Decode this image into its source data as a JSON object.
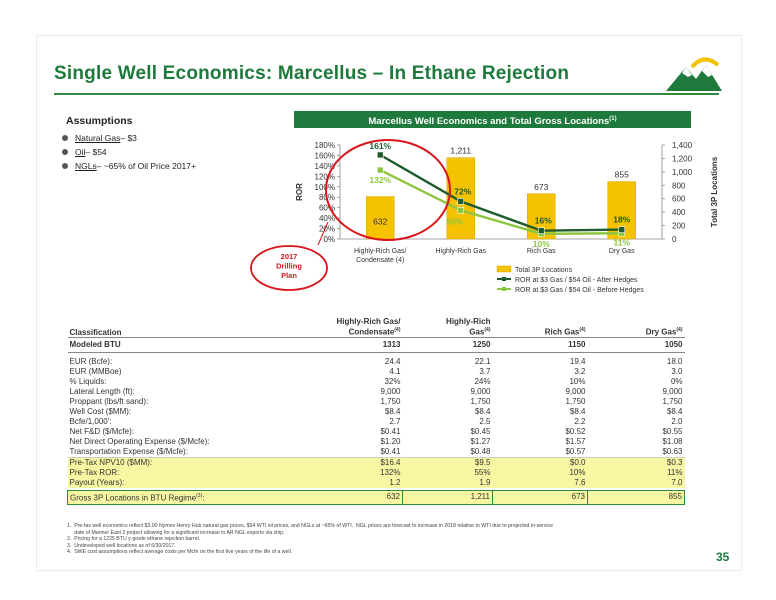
{
  "slide": {
    "title": "Single Well Economics: Marcellus – In Ethane Rejection",
    "page_number": "35",
    "accent_color": "#1e7a3c"
  },
  "assumptions": {
    "heading": "Assumptions",
    "items": [
      {
        "label": "Natural Gas",
        "value": " – $3"
      },
      {
        "label": "Oil",
        "value": " – $54"
      },
      {
        "label": "NGLs",
        "value": " – ~65% of Oil Price 2017+"
      }
    ]
  },
  "chart_banner": {
    "text": "Marcellus Well Economics and Total Gross Locations",
    "sup": "(1)"
  },
  "annotation": {
    "lines": [
      "2017",
      "Drilling",
      "Plan"
    ]
  },
  "chart_data": {
    "type": "bar",
    "categories": [
      "Highly-Rich Gas/ Condensate (4)",
      "Highly-Rich Gas",
      "Rich Gas",
      "Dry Gas"
    ],
    "category_lines": [
      [
        "Highly-Rich Gas/",
        "Condensate (4)"
      ],
      [
        "Highly-Rich Gas"
      ],
      [
        "Rich Gas"
      ],
      [
        "Dry Gas"
      ]
    ],
    "ylabel": "ROR",
    "y2label": "Total 3P Locations",
    "ylim": [
      0,
      180
    ],
    "y2lim": [
      0,
      1400
    ],
    "y_ticks": [
      "0%",
      "20%",
      "40%",
      "60%",
      "80%",
      "100%",
      "120%",
      "140%",
      "160%",
      "180%"
    ],
    "y2_ticks": [
      "0",
      "200",
      "400",
      "600",
      "800",
      "1,000",
      "1,200",
      "1,400"
    ],
    "series": [
      {
        "name": "Total 3P Locations",
        "kind": "bar",
        "axis": "right",
        "values": [
          632,
          1211,
          673,
          855
        ],
        "labels": [
          "632",
          "1,211",
          "673",
          "855"
        ],
        "color": "#f5c200"
      },
      {
        "name": "ROR at $3 Gas / $54 Oil - After Hedges",
        "kind": "line",
        "axis": "left",
        "values": [
          161,
          72,
          16,
          18
        ],
        "labels": [
          "161%",
          "72%",
          "16%",
          "18%"
        ],
        "color": "#1e5c2e"
      },
      {
        "name": "ROR at $3 Gas / $54 Oil - Before Hedges",
        "kind": "line",
        "axis": "left",
        "values": [
          132,
          55,
          10,
          11
        ],
        "labels": [
          "132%",
          "55%",
          "10%",
          "11%"
        ],
        "color": "#8cc63f"
      }
    ],
    "legend_position": "bottom"
  },
  "table": {
    "classification_label": "Classification",
    "columns": [
      {
        "lines": [
          "Highly-Rich Gas/",
          "Condensate"
        ],
        "sup": "(4)"
      },
      {
        "lines": [
          "Highly-Rich",
          "Gas"
        ],
        "sup": "(4)"
      },
      {
        "lines": [
          "",
          "Rich Gas"
        ],
        "sup": "(4)"
      },
      {
        "lines": [
          "",
          "Dry Gas"
        ],
        "sup": "(4)"
      }
    ],
    "btu_row": {
      "label": "Modeled BTU",
      "values": [
        "1313",
        "1250",
        "1150",
        "1050"
      ]
    },
    "rows": [
      {
        "label": "EUR (Bcfe):",
        "values": [
          "24.4",
          "22.1",
          "19.4",
          "18.0"
        ]
      },
      {
        "label": "EUR (MMBoe)",
        "values": [
          "4.1",
          "3.7",
          "3.2",
          "3.0"
        ]
      },
      {
        "label": " % Liquids:",
        "values": [
          "32%",
          "24%",
          "10%",
          "0%"
        ]
      },
      {
        "label": "Lateral Length (ft):",
        "values": [
          "9,000",
          "9,000",
          "9,000",
          "9,000"
        ]
      },
      {
        "label": "Proppant (lbs/ft sand):",
        "values": [
          "1,750",
          "1,750",
          "1,750",
          "1,750"
        ]
      },
      {
        "label": "Well Cost ($MM):",
        "values": [
          "$8.4",
          "$8.4",
          "$8.4",
          "$8.4"
        ]
      },
      {
        "label": "Bcfe/1,000':",
        "values": [
          "2.7",
          "2.5",
          "2.2",
          "2.0"
        ]
      },
      {
        "label": "Net F&D ($/Mcfe):",
        "values": [
          "$0.41",
          "$0.45",
          "$0.52",
          "$0.55"
        ]
      },
      {
        "label": "Net Direct Operating Expense ($/Mcfe):",
        "values": [
          "$1.20",
          "$1.27",
          "$1.57",
          "$1.08"
        ]
      },
      {
        "label": "Transportation Expense ($/Mcfe):",
        "values": [
          "$0.41",
          "$0.48",
          "$0.57",
          "$0.63"
        ]
      }
    ],
    "highlight_rows": [
      {
        "label": "Pre-Tax NPV10 ($MM):",
        "values": [
          "$16.4",
          "$9.5",
          "$0.0",
          "$0.3"
        ]
      },
      {
        "label": "Pre-Tax ROR:",
        "values": [
          "132%",
          "55%",
          "10%",
          "11%"
        ]
      },
      {
        "label": "Payout (Years):",
        "values": [
          "1.2",
          "1.9",
          "7.6",
          "7.0"
        ]
      }
    ],
    "gross_row": {
      "label": "Gross 3P Locations in BTU Regime",
      "sup": "(3)",
      "suffix": ":",
      "values": [
        "632",
        "1,211",
        "673",
        "855"
      ]
    }
  },
  "footnotes": [
    "1.  Pre-tax well economics reflect $3.00 Nymex Henry Hub natural gas prices, $54 WTI oil prices, and NGLs at ~65% of WTI.  NGL prices are forecast to increase in 2018 relative to WTI due to projected in-service",
    "     date of Mariner East 2 project allowing for a significant increase in AR NGL exports via ship.",
    "2.  Pricing for a 1225 BTU y-grade ethane rejection barrel.",
    "3.  Undeveloped well locations as of 6/30/2017.",
    "4.  SWE cost assumptions reflect average costs per Mcfe on the first five years of the life of a well."
  ]
}
